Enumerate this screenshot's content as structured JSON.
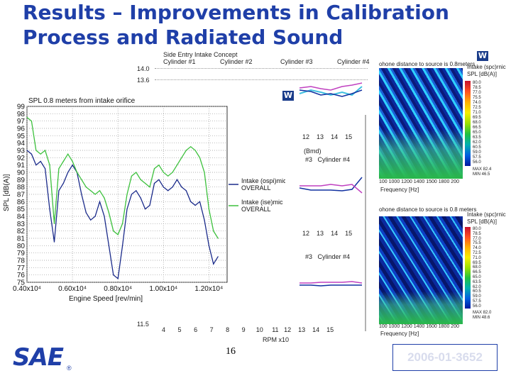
{
  "title": {
    "line1": "Results – Improvements in Calibration",
    "line2": "Process and Radiated Sound"
  },
  "page_number": "16",
  "paper_id": "2006-01-3652",
  "logo": {
    "text": "SAE",
    "mark": "®"
  },
  "background_chart": {
    "title": "Side Entry Intake Concept",
    "legend": [
      "Cylinder #1",
      "Cylinder #2",
      "Cylinder #3",
      "Cylinder #4"
    ],
    "legend_mid": [
      "#3",
      "Cylinder #4"
    ],
    "y_ticks": [
      "14.0",
      "13.6"
    ],
    "bottom_tick": "11.5",
    "x_ticks": [
      "4",
      "5",
      "6",
      "7",
      "8",
      "9",
      "10",
      "11",
      "12",
      "13",
      "14",
      "15"
    ],
    "panel_ticks_1": [
      "12",
      "13",
      "14",
      "15"
    ],
    "panel_ticks_2": [
      "12",
      "13",
      "14",
      "15"
    ],
    "x_label": "RPM x10",
    "unit_label": "(Bmd)",
    "colors": {
      "cyl1": "#c8a000",
      "cyl2": "#40c0e0",
      "cyl3": "#1030a0",
      "cyl4": "#c040c0"
    }
  },
  "spectrogram_top": {
    "caption": "ohone distance to source is 0.8meters",
    "x_ticks": [
      "100",
      "1000",
      "1200",
      "1400",
      "1500",
      "1800",
      "200"
    ],
    "x_label": "Frequency [Hz]",
    "scale_title": "Intake (spc)rnic",
    "scale_unit": "SPL [dB(A)]",
    "scale_values": [
      "80.0",
      "78.5",
      "77.0",
      "75.5",
      "74.0",
      "72.5",
      "71.0",
      "69.5",
      "68.0",
      "66.5",
      "65.0",
      "63.5",
      "62.0",
      "60.5",
      "59.0",
      "57.5",
      "56.0"
    ],
    "max_label": "MAX 82.4",
    "min_label": "MIN 46.5"
  },
  "spectrogram_bottom": {
    "caption": "ohone distance to source is 0.8 meters",
    "x_ticks": [
      "100",
      "1000",
      "1200",
      "1400",
      "1600",
      "1800",
      "200"
    ],
    "x_label": "Frequency [Hz]",
    "scale_title": "Intake (spc)rnic",
    "scale_unit": "SPL [dB(A)]",
    "scale_values": [
      "80.0",
      "78.5",
      "77.0",
      "75.5",
      "74.0",
      "72.5",
      "71.0",
      "69.5",
      "68.0",
      "66.5",
      "65.0",
      "63.5",
      "62.0",
      "60.5",
      "59.0",
      "57.5",
      "56.0"
    ],
    "max_label": "MAX 82.0",
    "min_label": "MIN 48.6"
  },
  "chart_data": {
    "type": "line",
    "title": "SPL 0.8 meters from intake orifice",
    "xlabel": "Engine Speed [rev/min]",
    "ylabel": "SPL [dB(A)]",
    "xlim": [
      4000,
      12800
    ],
    "ylim": [
      75,
      99
    ],
    "y_ticks": [
      "75",
      "76",
      "77",
      "78",
      "79",
      "80",
      "81",
      "82",
      "83",
      "84",
      "85",
      "86",
      "87",
      "88",
      "89",
      "90",
      "91",
      "92",
      "93",
      "94",
      "95",
      "96",
      "97",
      "98",
      "99"
    ],
    "x_ticks": [
      {
        "value": 4000,
        "label": "0.40x10⁴"
      },
      {
        "value": 6000,
        "label": "0.60x10⁴"
      },
      {
        "value": 8000,
        "label": "0.80x10⁴"
      },
      {
        "value": 10000,
        "label": "1.00x10⁴"
      },
      {
        "value": 12000,
        "label": "1.20x10⁴"
      }
    ],
    "grid": true,
    "series": [
      {
        "name": "Intake (ospi)mic OVERALL",
        "color": "#1a2a8a",
        "x": [
          4000,
          4200,
          4400,
          4600,
          4800,
          5000,
          5200,
          5400,
          5600,
          5800,
          6000,
          6200,
          6400,
          6600,
          6800,
          7000,
          7200,
          7400,
          7600,
          7800,
          8000,
          8200,
          8400,
          8600,
          8800,
          9000,
          9200,
          9400,
          9600,
          9800,
          10000,
          10200,
          10400,
          10600,
          10800,
          11000,
          11200,
          11400,
          11600,
          11800,
          12000,
          12200,
          12400
        ],
        "y": [
          93,
          92.5,
          91,
          91.5,
          90.5,
          85,
          80.5,
          87.5,
          88.5,
          90,
          91,
          90,
          87,
          84.5,
          83.5,
          84,
          86,
          84,
          80,
          76,
          75.5,
          80,
          85,
          87,
          87.5,
          86.5,
          85,
          85.5,
          88.5,
          89,
          88,
          87.5,
          88,
          89,
          88,
          87.5,
          86,
          85.5,
          86,
          83.5,
          80,
          77.5,
          78.5
        ]
      },
      {
        "name": "Intake (ise)mic OVERALL",
        "color": "#3cc03c",
        "x": [
          4000,
          4200,
          4400,
          4600,
          4800,
          5000,
          5200,
          5400,
          5600,
          5800,
          6000,
          6200,
          6400,
          6600,
          6800,
          7000,
          7200,
          7400,
          7600,
          7800,
          8000,
          8200,
          8400,
          8600,
          8800,
          9000,
          9200,
          9400,
          9600,
          9800,
          10000,
          10200,
          10400,
          10600,
          10800,
          11000,
          11200,
          11400,
          11600,
          11800,
          12000,
          12200,
          12400
        ],
        "y": [
          97.5,
          97,
          93,
          92.5,
          93,
          91,
          83,
          90.5,
          91.5,
          92.5,
          91.5,
          90,
          89,
          88,
          87.5,
          87,
          87.5,
          86.5,
          84.5,
          82,
          81.5,
          83,
          87,
          89.5,
          90,
          89,
          88.5,
          88,
          90.5,
          91,
          90,
          89.5,
          90,
          91,
          92,
          93,
          93.5,
          93,
          92,
          90,
          85,
          82,
          81
        ]
      }
    ],
    "legend_position": "right"
  }
}
